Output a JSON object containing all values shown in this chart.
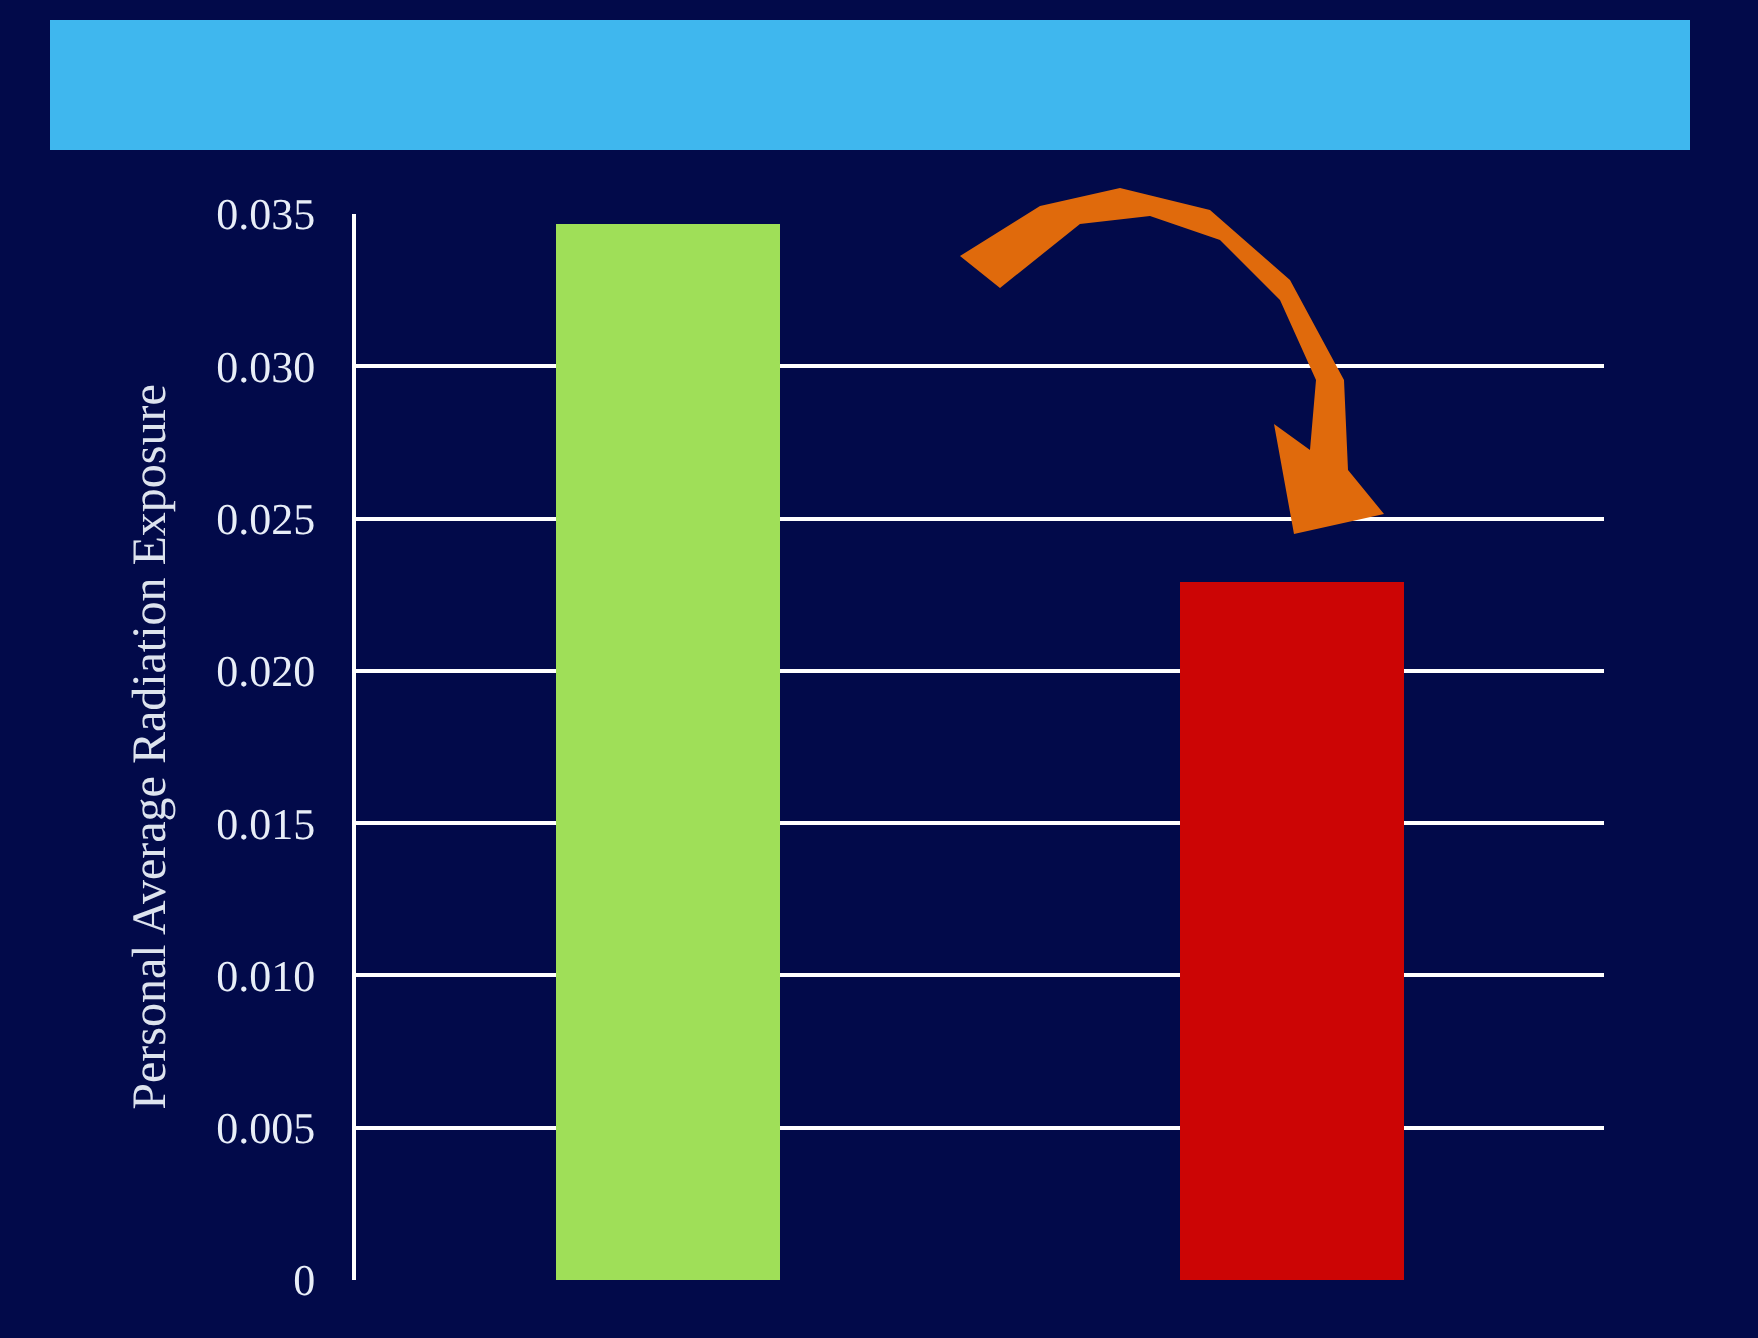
{
  "chart_data": {
    "type": "bar",
    "ylabel": "Personal Average Radiation Exposure",
    "categories": [
      null,
      null
    ],
    "values": [
      0.0347,
      0.0229
    ],
    "colors": [
      "#9fdf58",
      "#cc0505"
    ],
    "ylim": [
      0,
      0.035
    ],
    "yticks": [
      {
        "value": 0,
        "label": "0"
      },
      {
        "value": 0.005,
        "label": "0.005"
      },
      {
        "value": 0.01,
        "label": "0.010"
      },
      {
        "value": 0.015,
        "label": "0.015"
      },
      {
        "value": 0.02,
        "label": "0.020"
      },
      {
        "value": 0.025,
        "label": "0.025"
      },
      {
        "value": 0.03,
        "label": "0.030"
      },
      {
        "value": 0.035,
        "label": "0.035"
      }
    ],
    "grid": "y",
    "tick_labels": "y"
  }
}
